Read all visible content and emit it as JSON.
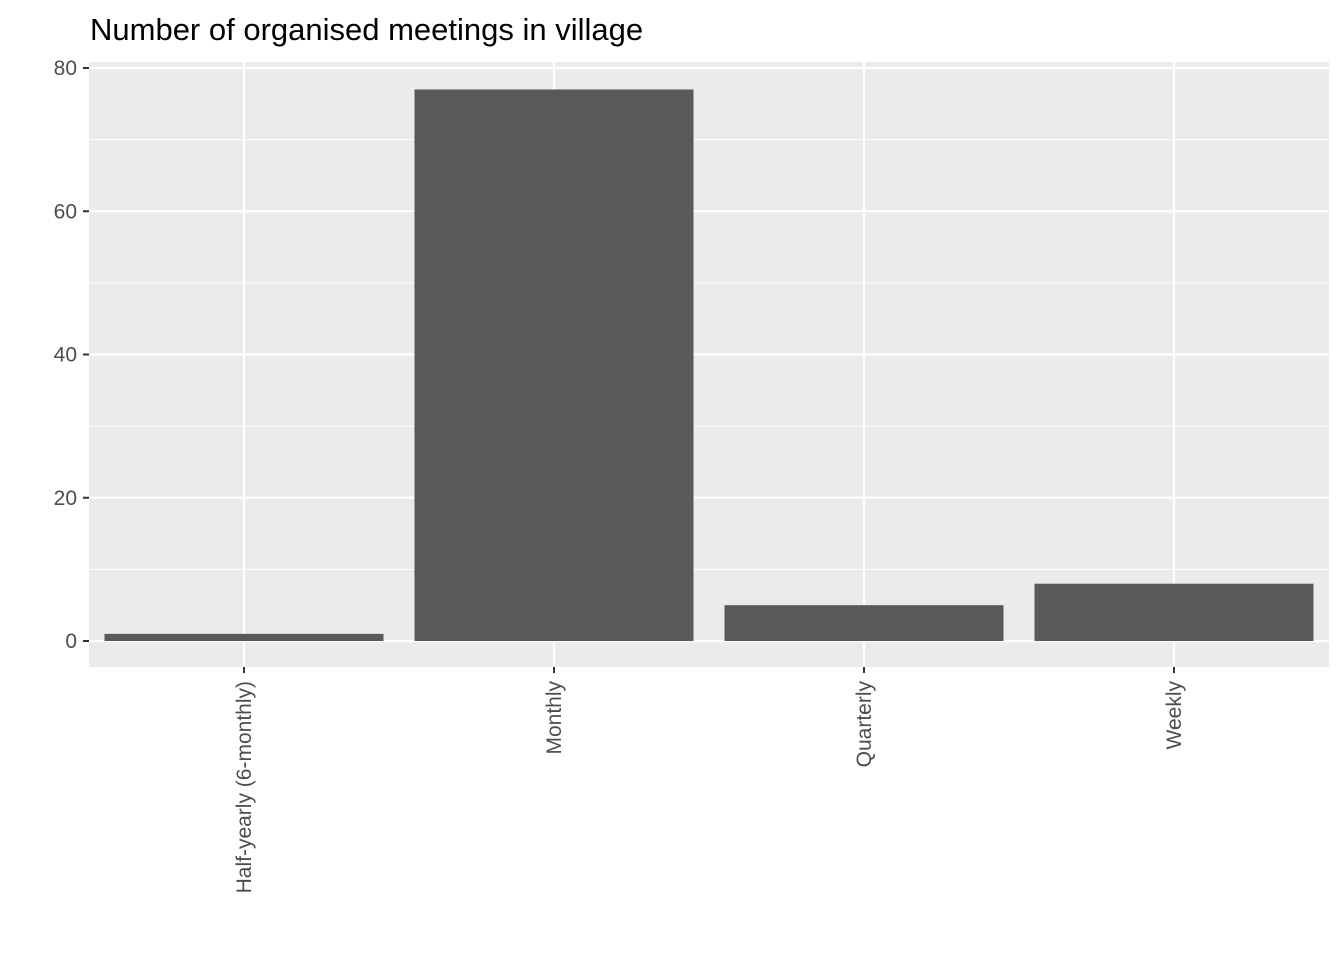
{
  "chart_data": {
    "type": "bar",
    "title": "Number of organised meetings in village",
    "xlabel": "",
    "ylabel": "",
    "categories": [
      "Half-yearly (6-monthly)",
      "Monthly",
      "Quarterly",
      "Weekly"
    ],
    "values": [
      1,
      77,
      5,
      8
    ],
    "ylim": [
      0,
      80
    ],
    "yticks": [
      0,
      20,
      40,
      60,
      80
    ],
    "ytick_labels": [
      "0",
      "20",
      "40",
      "60",
      "80"
    ],
    "grid": true,
    "x_tick_label_rotation": "vertical",
    "colors": {
      "bar": "#595959",
      "panel_background": "#ebebeb",
      "grid_major": "#ffffff",
      "tick_text": "#4d4d4d",
      "title_text": "#000000"
    }
  }
}
